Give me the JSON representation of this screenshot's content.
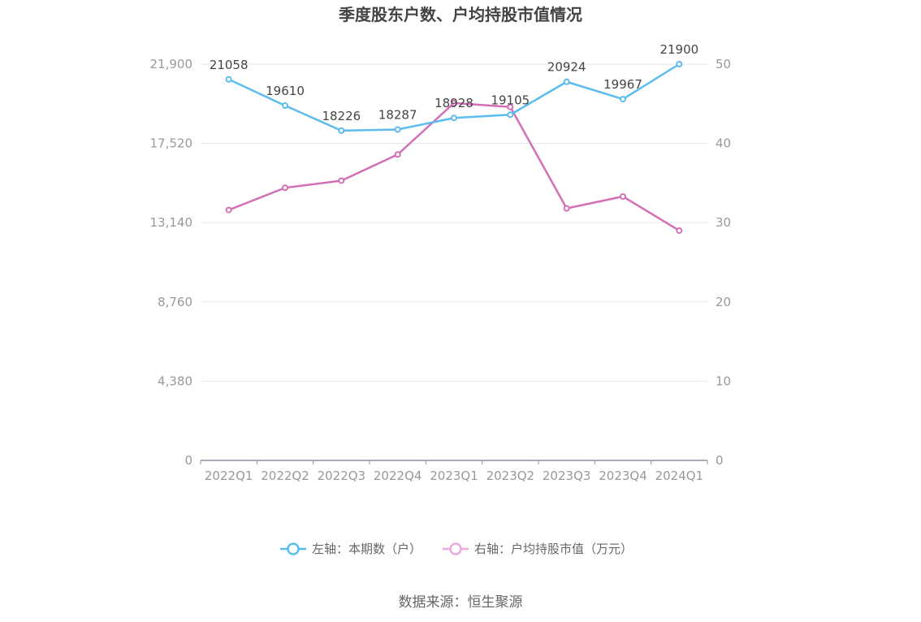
{
  "chart_data": {
    "type": "line",
    "title": "季度股东户数、户均持股市值情况",
    "categories": [
      "2022Q1",
      "2022Q2",
      "2022Q3",
      "2022Q4",
      "2023Q1",
      "2023Q2",
      "2023Q3",
      "2023Q4",
      "2024Q1"
    ],
    "series": [
      {
        "name": "左轴：本期数（户）",
        "axis": "left",
        "color": "#5bbcf0",
        "values": [
          21058,
          19610,
          18226,
          18287,
          18928,
          19105,
          20924,
          19967,
          21900
        ],
        "labels": [
          "21058",
          "19610",
          "18226",
          "18287",
          "18928",
          "19105",
          "20924",
          "19967",
          "21900"
        ]
      },
      {
        "name": "右轴：户均持股市值（万元）",
        "axis": "right",
        "color": "#d36fb5",
        "legend_color": "#eeaad6",
        "values": [
          31.6,
          34.4,
          35.3,
          38.6,
          45.1,
          44.6,
          31.8,
          33.3,
          29.0
        ]
      }
    ],
    "y_left": {
      "min": 0,
      "max": 21900,
      "ticks": [
        "0",
        "4,380",
        "8,760",
        "13,140",
        "17,520",
        "21,900"
      ]
    },
    "y_right": {
      "min": 0,
      "max": 50,
      "ticks": [
        "0",
        "10",
        "20",
        "30",
        "40",
        "50"
      ]
    },
    "grid": true,
    "legend_position": "bottom-center"
  },
  "source": "数据来源：恒生聚源"
}
